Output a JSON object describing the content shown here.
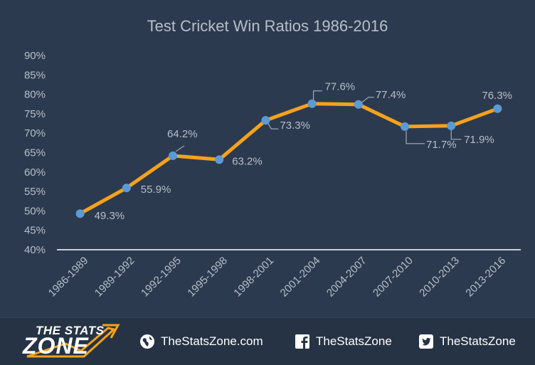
{
  "chart_data": {
    "type": "line",
    "title": "Test Cricket Win Ratios 1986-2016",
    "xlabel": "",
    "ylabel": "",
    "categories": [
      "1986-1989",
      "1989-1992",
      "1992-1995",
      "1995-1998",
      "1998-2001",
      "2001-2004",
      "2004-2007",
      "2007-2010",
      "2010-2013",
      "2013-2016"
    ],
    "series": [
      {
        "values": [
          49.3,
          55.9,
          64.2,
          63.2,
          73.3,
          77.6,
          77.4,
          71.7,
          71.9,
          76.3
        ],
        "labels": [
          "49.3%",
          "55.9%",
          "64.2%",
          "63.2%",
          "73.3%",
          "77.6%",
          "77.4%",
          "71.7%",
          "71.9%",
          "76.3%"
        ],
        "color": "#f5a21c",
        "marker_color": "#5b9bd5"
      }
    ],
    "ylim": [
      40,
      90
    ],
    "yticks": [
      "40%",
      "45%",
      "50%",
      "55%",
      "60%",
      "65%",
      "70%",
      "75%",
      "80%",
      "85%",
      "90%"
    ],
    "grid": false,
    "legend": "none"
  },
  "colors": {
    "background": "#2c3a4f",
    "footer": "#263344",
    "text": "#b7bfca",
    "axis": "#ffffff",
    "logo_accent": "#f5a21c"
  },
  "footer": {
    "logo_top": "THE STATS",
    "logo_bottom": "ZONE",
    "website": "TheStatsZone.com",
    "facebook": "TheStatsZone",
    "twitter": "TheStatsZone",
    "icons": [
      "globe-icon",
      "facebook-icon",
      "twitter-icon"
    ]
  }
}
